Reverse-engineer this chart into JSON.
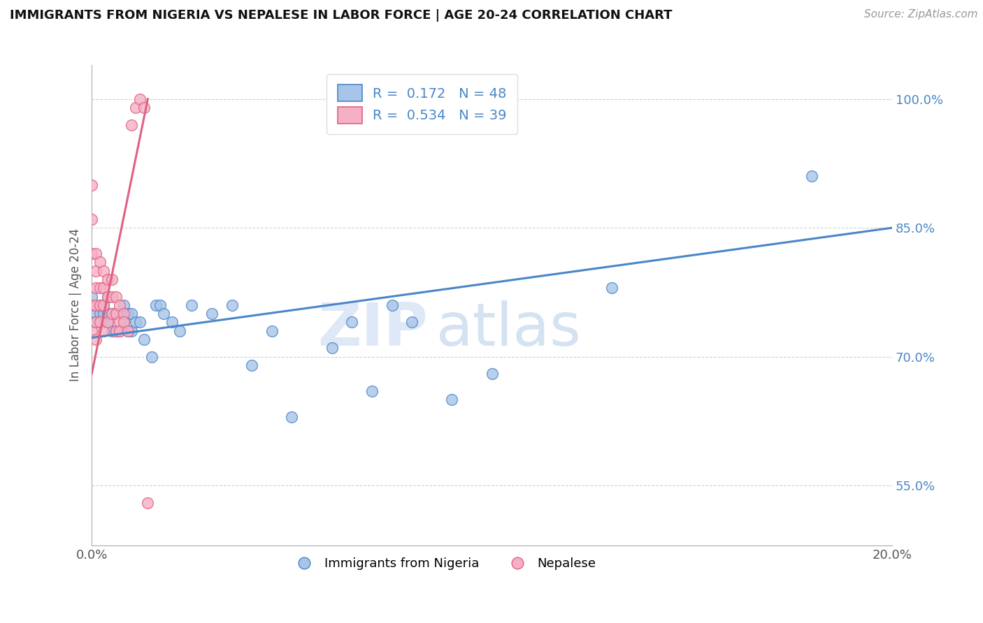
{
  "title": "IMMIGRANTS FROM NIGERIA VS NEPALESE IN LABOR FORCE | AGE 20-24 CORRELATION CHART",
  "source": "Source: ZipAtlas.com",
  "xlabel": "",
  "ylabel": "In Labor Force | Age 20-24",
  "xlim": [
    0.0,
    0.2
  ],
  "ylim": [
    0.48,
    1.04
  ],
  "xtick_labels": [
    "0.0%",
    "20.0%"
  ],
  "ytick_labels": [
    "55.0%",
    "70.0%",
    "85.0%",
    "100.0%"
  ],
  "ytick_vals": [
    0.55,
    0.7,
    0.85,
    1.0
  ],
  "xtick_vals": [
    0.0,
    0.2
  ],
  "legend_blue_label": "Immigrants from Nigeria",
  "legend_pink_label": "Nepalese",
  "R_blue": 0.172,
  "N_blue": 48,
  "R_pink": 0.534,
  "N_pink": 39,
  "blue_color": "#a8c4e8",
  "pink_color": "#f5b0c5",
  "blue_line_color": "#4a86c8",
  "pink_line_color": "#e06080",
  "blue_scatter_x": [
    0.0,
    0.0,
    0.001,
    0.001,
    0.002,
    0.002,
    0.003,
    0.003,
    0.003,
    0.004,
    0.004,
    0.004,
    0.005,
    0.005,
    0.006,
    0.006,
    0.007,
    0.007,
    0.008,
    0.008,
    0.009,
    0.009,
    0.01,
    0.01,
    0.011,
    0.012,
    0.013,
    0.015,
    0.016,
    0.017,
    0.018,
    0.02,
    0.022,
    0.025,
    0.03,
    0.035,
    0.04,
    0.045,
    0.05,
    0.06,
    0.065,
    0.07,
    0.075,
    0.08,
    0.09,
    0.1,
    0.13,
    0.18
  ],
  "blue_scatter_y": [
    0.77,
    0.74,
    0.75,
    0.74,
    0.76,
    0.75,
    0.75,
    0.74,
    0.76,
    0.74,
    0.75,
    0.77,
    0.73,
    0.75,
    0.73,
    0.75,
    0.73,
    0.75,
    0.74,
    0.76,
    0.73,
    0.75,
    0.73,
    0.75,
    0.74,
    0.74,
    0.72,
    0.7,
    0.76,
    0.76,
    0.75,
    0.74,
    0.73,
    0.76,
    0.75,
    0.76,
    0.69,
    0.73,
    0.63,
    0.71,
    0.74,
    0.66,
    0.76,
    0.74,
    0.65,
    0.68,
    0.78,
    0.91
  ],
  "pink_scatter_x": [
    0.0,
    0.0,
    0.0,
    0.0,
    0.0,
    0.001,
    0.001,
    0.001,
    0.001,
    0.001,
    0.001,
    0.002,
    0.002,
    0.002,
    0.002,
    0.003,
    0.003,
    0.003,
    0.003,
    0.004,
    0.004,
    0.004,
    0.005,
    0.005,
    0.005,
    0.006,
    0.006,
    0.006,
    0.007,
    0.007,
    0.007,
    0.008,
    0.008,
    0.009,
    0.01,
    0.011,
    0.012,
    0.013,
    0.014
  ],
  "pink_scatter_y": [
    0.9,
    0.86,
    0.82,
    0.76,
    0.73,
    0.82,
    0.8,
    0.78,
    0.76,
    0.74,
    0.72,
    0.81,
    0.78,
    0.76,
    0.74,
    0.8,
    0.78,
    0.76,
    0.73,
    0.79,
    0.77,
    0.74,
    0.79,
    0.77,
    0.75,
    0.77,
    0.75,
    0.73,
    0.76,
    0.74,
    0.73,
    0.75,
    0.74,
    0.73,
    0.97,
    0.99,
    1.0,
    0.99,
    0.53
  ],
  "pink_trendline_x": [
    0.0,
    0.014
  ],
  "pink_trendline_y": [
    0.68,
    1.0
  ],
  "blue_trendline_x": [
    0.0,
    0.2
  ],
  "blue_trendline_y": [
    0.722,
    0.85
  ],
  "watermark_zip": "ZIP",
  "watermark_atlas": "atlas",
  "background_color": "#ffffff",
  "grid_color": "#cccccc"
}
